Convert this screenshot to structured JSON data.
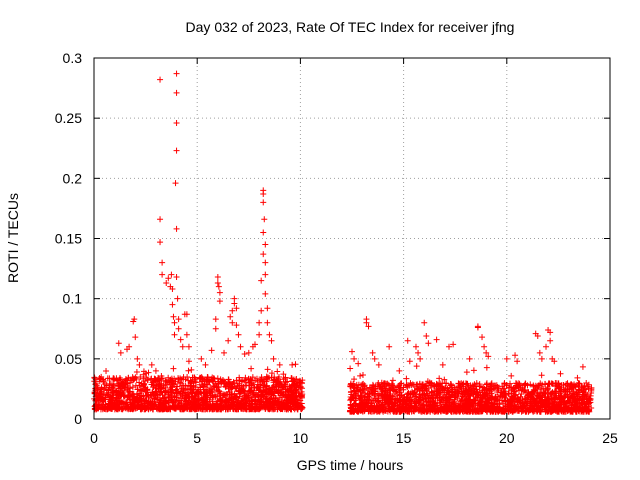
{
  "chart_data": {
    "type": "scatter",
    "title": "Day 032 of 2023, Rate Of TEC Index for receiver jfng",
    "xlabel": "GPS time / hours",
    "ylabel": "ROTI / TECUs",
    "xlim": [
      0,
      25
    ],
    "ylim": [
      0,
      0.3
    ],
    "xticks": [
      0,
      5,
      10,
      15,
      20,
      25
    ],
    "yticks": [
      0,
      0.05,
      0.1,
      0.15,
      0.2,
      0.25,
      0.3
    ],
    "xtick_labels": [
      "0",
      "5",
      "10",
      "15",
      "20",
      "25"
    ],
    "ytick_labels": [
      "0",
      "0.05",
      "0.1",
      "0.15",
      "0.2",
      "0.25",
      "0.3"
    ],
    "grid": true,
    "marker": "+",
    "color": "#ff0000",
    "series": [
      {
        "name": "ROTI",
        "segments": [
          {
            "x_range": [
              0.0,
              10.1
            ],
            "base_low": 0.008,
            "base_high": 0.035
          },
          {
            "x_range": [
              12.4,
              24.1
            ],
            "base_low": 0.006,
            "base_high": 0.03
          }
        ],
        "points": [
          {
            "x": 1.2,
            "y": 0.063
          },
          {
            "x": 1.3,
            "y": 0.055
          },
          {
            "x": 1.6,
            "y": 0.058
          },
          {
            "x": 1.7,
            "y": 0.06
          },
          {
            "x": 1.9,
            "y": 0.081
          },
          {
            "x": 1.95,
            "y": 0.083
          },
          {
            "x": 2.0,
            "y": 0.068
          },
          {
            "x": 2.1,
            "y": 0.05
          },
          {
            "x": 2.2,
            "y": 0.045
          },
          {
            "x": 2.8,
            "y": 0.045
          },
          {
            "x": 3.0,
            "y": 0.04
          },
          {
            "x": 3.2,
            "y": 0.282
          },
          {
            "x": 3.2,
            "y": 0.166
          },
          {
            "x": 3.2,
            "y": 0.147
          },
          {
            "x": 3.3,
            "y": 0.13
          },
          {
            "x": 3.3,
            "y": 0.12
          },
          {
            "x": 3.5,
            "y": 0.113
          },
          {
            "x": 3.6,
            "y": 0.117
          },
          {
            "x": 3.7,
            "y": 0.11
          },
          {
            "x": 3.75,
            "y": 0.12
          },
          {
            "x": 3.8,
            "y": 0.108
          },
          {
            "x": 3.8,
            "y": 0.095
          },
          {
            "x": 3.85,
            "y": 0.085
          },
          {
            "x": 3.9,
            "y": 0.08
          },
          {
            "x": 3.9,
            "y": 0.07
          },
          {
            "x": 4.0,
            "y": 0.287
          },
          {
            "x": 4.0,
            "y": 0.271
          },
          {
            "x": 4.0,
            "y": 0.246
          },
          {
            "x": 4.0,
            "y": 0.223
          },
          {
            "x": 3.95,
            "y": 0.196
          },
          {
            "x": 4.0,
            "y": 0.158
          },
          {
            "x": 4.0,
            "y": 0.118
          },
          {
            "x": 4.05,
            "y": 0.1
          },
          {
            "x": 4.1,
            "y": 0.083
          },
          {
            "x": 4.1,
            "y": 0.075
          },
          {
            "x": 4.2,
            "y": 0.066
          },
          {
            "x": 4.3,
            "y": 0.06
          },
          {
            "x": 4.4,
            "y": 0.087
          },
          {
            "x": 4.5,
            "y": 0.087
          },
          {
            "x": 4.5,
            "y": 0.07
          },
          {
            "x": 4.6,
            "y": 0.06
          },
          {
            "x": 4.6,
            "y": 0.048
          },
          {
            "x": 5.2,
            "y": 0.05
          },
          {
            "x": 5.4,
            "y": 0.045
          },
          {
            "x": 5.7,
            "y": 0.057
          },
          {
            "x": 5.9,
            "y": 0.083
          },
          {
            "x": 5.9,
            "y": 0.075
          },
          {
            "x": 6.0,
            "y": 0.118
          },
          {
            "x": 6.0,
            "y": 0.113
          },
          {
            "x": 6.05,
            "y": 0.11
          },
          {
            "x": 6.1,
            "y": 0.105
          },
          {
            "x": 6.1,
            "y": 0.098
          },
          {
            "x": 6.3,
            "y": 0.055
          },
          {
            "x": 6.5,
            "y": 0.065
          },
          {
            "x": 6.6,
            "y": 0.085
          },
          {
            "x": 6.7,
            "y": 0.09
          },
          {
            "x": 6.7,
            "y": 0.08
          },
          {
            "x": 6.8,
            "y": 0.1
          },
          {
            "x": 6.8,
            "y": 0.096
          },
          {
            "x": 6.9,
            "y": 0.092
          },
          {
            "x": 6.9,
            "y": 0.078
          },
          {
            "x": 7.0,
            "y": 0.07
          },
          {
            "x": 7.1,
            "y": 0.06
          },
          {
            "x": 7.3,
            "y": 0.054
          },
          {
            "x": 7.5,
            "y": 0.055
          },
          {
            "x": 7.7,
            "y": 0.06
          },
          {
            "x": 7.8,
            "y": 0.062
          },
          {
            "x": 8.0,
            "y": 0.07
          },
          {
            "x": 8.0,
            "y": 0.08
          },
          {
            "x": 8.1,
            "y": 0.09
          },
          {
            "x": 8.1,
            "y": 0.115
          },
          {
            "x": 8.2,
            "y": 0.19
          },
          {
            "x": 8.2,
            "y": 0.187
          },
          {
            "x": 8.2,
            "y": 0.18
          },
          {
            "x": 8.25,
            "y": 0.166
          },
          {
            "x": 8.2,
            "y": 0.155
          },
          {
            "x": 8.3,
            "y": 0.145
          },
          {
            "x": 8.2,
            "y": 0.137
          },
          {
            "x": 8.3,
            "y": 0.13
          },
          {
            "x": 8.3,
            "y": 0.12
          },
          {
            "x": 8.3,
            "y": 0.104
          },
          {
            "x": 8.4,
            "y": 0.092
          },
          {
            "x": 8.4,
            "y": 0.08
          },
          {
            "x": 8.5,
            "y": 0.07
          },
          {
            "x": 8.6,
            "y": 0.065
          },
          {
            "x": 8.7,
            "y": 0.05
          },
          {
            "x": 9.0,
            "y": 0.045
          },
          {
            "x": 9.6,
            "y": 0.045
          },
          {
            "x": 12.5,
            "y": 0.056
          },
          {
            "x": 12.6,
            "y": 0.05
          },
          {
            "x": 12.8,
            "y": 0.046
          },
          {
            "x": 13.2,
            "y": 0.083
          },
          {
            "x": 13.2,
            "y": 0.08
          },
          {
            "x": 13.3,
            "y": 0.077
          },
          {
            "x": 13.5,
            "y": 0.055
          },
          {
            "x": 13.6,
            "y": 0.05
          },
          {
            "x": 13.8,
            "y": 0.045
          },
          {
            "x": 14.3,
            "y": 0.06
          },
          {
            "x": 15.2,
            "y": 0.065
          },
          {
            "x": 15.3,
            "y": 0.048
          },
          {
            "x": 15.6,
            "y": 0.06
          },
          {
            "x": 15.7,
            "y": 0.055
          },
          {
            "x": 15.8,
            "y": 0.05
          },
          {
            "x": 16.0,
            "y": 0.08
          },
          {
            "x": 16.1,
            "y": 0.069
          },
          {
            "x": 16.2,
            "y": 0.063
          },
          {
            "x": 16.6,
            "y": 0.066
          },
          {
            "x": 16.9,
            "y": 0.045
          },
          {
            "x": 17.2,
            "y": 0.06
          },
          {
            "x": 17.4,
            "y": 0.062
          },
          {
            "x": 18.2,
            "y": 0.05
          },
          {
            "x": 18.6,
            "y": 0.077
          },
          {
            "x": 18.6,
            "y": 0.076
          },
          {
            "x": 18.8,
            "y": 0.068
          },
          {
            "x": 18.9,
            "y": 0.06
          },
          {
            "x": 19.0,
            "y": 0.055
          },
          {
            "x": 19.1,
            "y": 0.052
          },
          {
            "x": 20.0,
            "y": 0.05
          },
          {
            "x": 20.4,
            "y": 0.053
          },
          {
            "x": 20.5,
            "y": 0.048
          },
          {
            "x": 21.4,
            "y": 0.071
          },
          {
            "x": 21.5,
            "y": 0.069
          },
          {
            "x": 21.6,
            "y": 0.055
          },
          {
            "x": 21.7,
            "y": 0.05
          },
          {
            "x": 21.9,
            "y": 0.06
          },
          {
            "x": 22.0,
            "y": 0.074
          },
          {
            "x": 22.1,
            "y": 0.072
          },
          {
            "x": 22.1,
            "y": 0.065
          },
          {
            "x": 22.2,
            "y": 0.05
          },
          {
            "x": 22.3,
            "y": 0.048
          }
        ]
      }
    ]
  }
}
